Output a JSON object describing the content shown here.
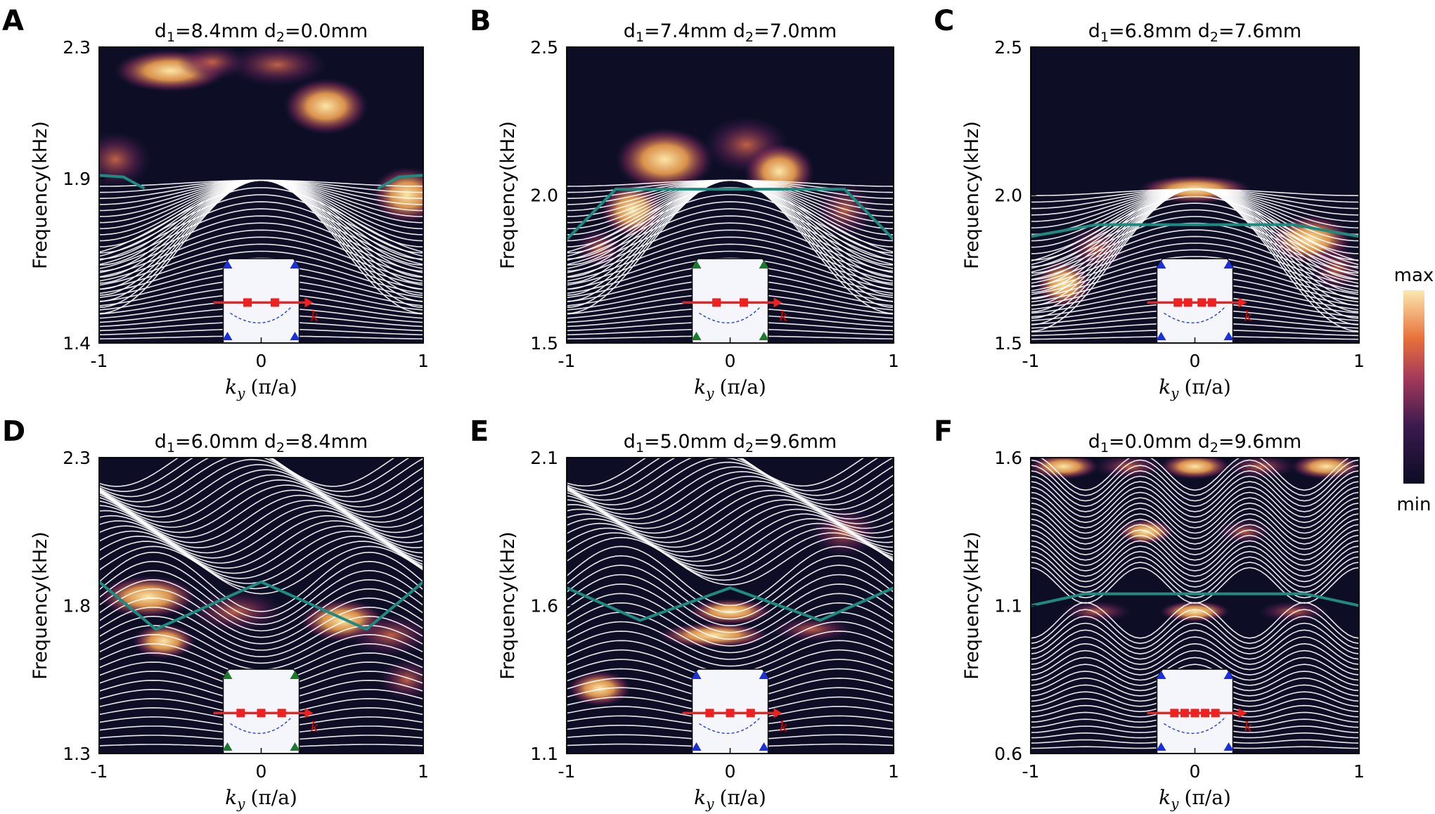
{
  "colorbar": {
    "max_label": "max",
    "min_label": "min"
  },
  "chart_data": [
    {
      "type": "heatmap",
      "panel": "A",
      "title_d1": "8.4mm",
      "title_d2": "0.0mm",
      "ylabel": "Frequency(kHz)",
      "xlabel_var": "k",
      "xlabel_sub": "y",
      "xlabel_unit": "(π/a)",
      "xlim": [
        -1,
        1
      ],
      "ylim": [
        1.4,
        2.3
      ],
      "xticks": [
        "-1",
        "0",
        "1"
      ],
      "yticks": [
        "1.4",
        "1.9",
        "2.3"
      ],
      "edge_state": {
        "x": [
          -1,
          -0.85,
          -0.72
        ],
        "y": [
          1.91,
          1.905,
          1.87
        ],
        "x2": [
          0.72,
          0.85,
          1
        ],
        "y2": [
          1.87,
          1.905,
          1.91
        ]
      },
      "inset": {
        "dots": [
          -0.2,
          0.2
        ],
        "corner_markers": "blue-filled"
      }
    },
    {
      "type": "heatmap",
      "panel": "B",
      "title_d1": "7.4mm",
      "title_d2": "7.0mm",
      "ylabel": "Frequency(kHz)",
      "xlabel_var": "k",
      "xlabel_sub": "y",
      "xlabel_unit": "(π/a)",
      "xlim": [
        -1,
        1
      ],
      "ylim": [
        1.5,
        2.5
      ],
      "xticks": [
        "-1",
        "0",
        "1"
      ],
      "yticks": [
        "1.5",
        "2.0",
        "2.5"
      ],
      "edge_state": {
        "x": [
          -1,
          -0.7,
          0.7,
          1
        ],
        "y": [
          1.85,
          2.02,
          2.02,
          1.85
        ]
      },
      "inset": {
        "dots": [
          -0.2,
          0.2
        ],
        "corner_markers": "green"
      }
    },
    {
      "type": "heatmap",
      "panel": "C",
      "title_d1": "6.8mm",
      "title_d2": "7.6mm",
      "ylabel": "Frequency(kHz)",
      "xlabel_var": "k",
      "xlabel_sub": "y",
      "xlabel_unit": "(π/a)",
      "xlim": [
        -1,
        1
      ],
      "ylim": [
        1.5,
        2.5
      ],
      "xticks": [
        "-1",
        "0",
        "1"
      ],
      "yticks": [
        "1.5",
        "2.0",
        "2.5"
      ],
      "edge_state": {
        "x": [
          -1,
          -0.6,
          0.6,
          1
        ],
        "y": [
          1.86,
          1.9,
          1.9,
          1.86
        ]
      },
      "inset": {
        "dots": [
          -0.25,
          -0.1,
          0.1,
          0.25
        ],
        "corner_markers": "blue-mixed"
      }
    },
    {
      "type": "heatmap",
      "panel": "D",
      "title_d1": "6.0mm",
      "title_d2": "8.4mm",
      "ylabel": "Frequency(kHz)",
      "xlabel_var": "k",
      "xlabel_sub": "y",
      "xlabel_unit": "(π/a)",
      "xlim": [
        -1,
        1
      ],
      "ylim": [
        1.3,
        2.3
      ],
      "xticks": [
        "-1",
        "0",
        "1"
      ],
      "yticks": [
        "1.3",
        "1.8",
        "2.3"
      ],
      "edge_state": {
        "x": [
          -1,
          -0.65,
          0,
          0.65,
          1
        ],
        "y": [
          1.88,
          1.72,
          1.88,
          1.72,
          1.88
        ]
      },
      "inset": {
        "dots": [
          -0.3,
          0,
          0.3
        ],
        "corner_markers": "green"
      }
    },
    {
      "type": "heatmap",
      "panel": "E",
      "title_d1": "5.0mm",
      "title_d2": "9.6mm",
      "ylabel": "Frequency(kHz)",
      "xlabel_var": "k",
      "xlabel_sub": "y",
      "xlabel_unit": "(π/a)",
      "xlim": [
        -1,
        1
      ],
      "ylim": [
        1.1,
        2.1
      ],
      "xticks": [
        "-1",
        "0",
        "1"
      ],
      "yticks": [
        "1.1",
        "1.6",
        "2.1"
      ],
      "edge_state": {
        "x": [
          -1,
          -0.55,
          0,
          0.55,
          1
        ],
        "y": [
          1.66,
          1.55,
          1.66,
          1.55,
          1.66
        ]
      },
      "inset": {
        "dots": [
          -0.3,
          0,
          0.3
        ],
        "corner_markers": "blue-mixed"
      }
    },
    {
      "type": "heatmap",
      "panel": "F",
      "title_d1": "0.0mm",
      "title_d2": "9.6mm",
      "ylabel": "Frequency(kHz)",
      "xlabel_var": "k",
      "xlabel_sub": "y",
      "xlabel_unit": "(π/a)",
      "xlim": [
        -1,
        1
      ],
      "ylim": [
        0.6,
        1.6
      ],
      "xticks": [
        "-1",
        "0",
        "1"
      ],
      "yticks": [
        "0.6",
        "1.1",
        "1.6"
      ],
      "edge_state": {
        "x": [
          -1,
          -0.67,
          0,
          0.67,
          1
        ],
        "y": [
          1.1,
          1.14,
          1.14,
          1.14,
          1.1
        ]
      },
      "inset": {
        "dots": [
          -0.3,
          -0.15,
          0,
          0.15,
          0.3
        ],
        "corner_markers": "blue-mixed"
      }
    }
  ]
}
